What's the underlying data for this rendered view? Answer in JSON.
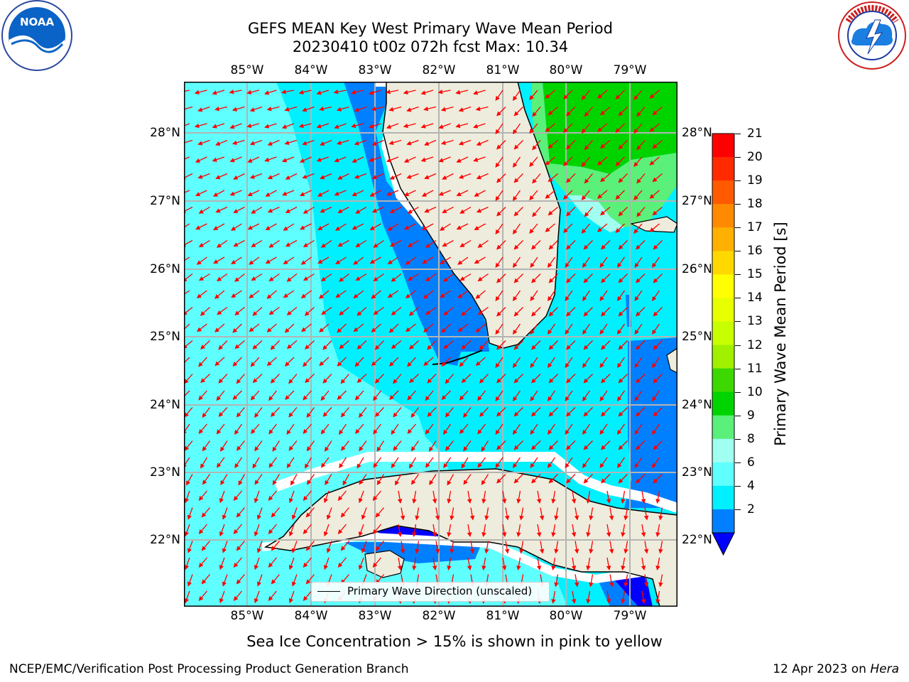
{
  "title": {
    "line1": "GEFS MEAN Key West Primary Wave Mean Period",
    "line2": "20230410 t00z 072h fcst   Max: 10.34"
  },
  "x_ticks": [
    "85°W",
    "84°W",
    "83°W",
    "82°W",
    "81°W",
    "80°W",
    "79°W"
  ],
  "y_ticks": [
    "28°N",
    "27°N",
    "26°N",
    "25°N",
    "24°N",
    "23°N",
    "22°N"
  ],
  "colorbar": {
    "label": "Primary Wave Mean Period [s]",
    "ticks": [
      "21",
      "20",
      "19",
      "18",
      "17",
      "16",
      "15",
      "14",
      "13",
      "12",
      "11",
      "10",
      "9",
      "8",
      "6",
      "4",
      "2"
    ],
    "colors": [
      "#ff0000",
      "#ff2a00",
      "#ff5a00",
      "#ff8a00",
      "#ffb000",
      "#ffd800",
      "#ffff00",
      "#e8ff00",
      "#c8ff00",
      "#a0f000",
      "#3cd800",
      "#00d400",
      "#5af07a",
      "#a0fff0",
      "#60ffff",
      "#00f0ff",
      "#0080ff"
    ],
    "under_color": "#0000ff"
  },
  "colors": {
    "land": "#eeecdc",
    "ocean_4_6": "#00f0ff",
    "ocean_6_8": "#60ffff",
    "deep_blue": "#0080ff",
    "navy": "#0000ff",
    "green": "#00d400",
    "light_green": "#5af07a",
    "arrow": "#ff0000",
    "grid": "#b4b4b4"
  },
  "legend": {
    "label": "Primary Wave Direction (unscaled)"
  },
  "footer_note": "Sea Ice Concentration > 15% is shown in pink to yellow",
  "credit": "NCEP/EMC/Verification Post Processing Product Generation Branch",
  "date": "12 Apr 2023 on ",
  "host": "Hera",
  "logos": {
    "left": "NOAA",
    "right": "NATIONAL WEATHER SERVICE"
  }
}
